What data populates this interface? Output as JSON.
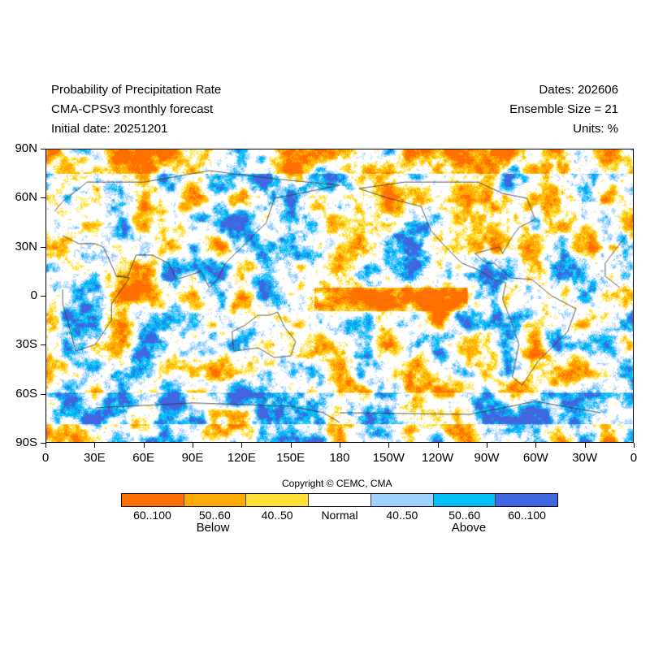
{
  "header": {
    "title": "Probability of Precipitation Rate",
    "model": "CMA-CPSv3 monthly forecast",
    "initial_date": "Initial date: 20251201",
    "dates": "Dates: 202606",
    "ensemble": "Ensemble Size = 21",
    "units": "Units: %"
  },
  "axes": {
    "y_labels": [
      "90N",
      "60N",
      "30N",
      "0",
      "30S",
      "60S",
      "90S"
    ],
    "x_labels": [
      "0",
      "30E",
      "60E",
      "90E",
      "120E",
      "150E",
      "180",
      "150W",
      "120W",
      "90W",
      "60W",
      "30W",
      "0"
    ]
  },
  "copyright": "Copyright © CEMC, CMA",
  "legend": {
    "bins": [
      {
        "label": "60..100",
        "color": "#FF7000"
      },
      {
        "label": "50..60",
        "color": "#FFAA00"
      },
      {
        "label": "40..50",
        "color": "#FFE033"
      },
      {
        "label": "Normal",
        "color": "#FFFFFF"
      },
      {
        "label": "40..50",
        "color": "#A0D2FF"
      },
      {
        "label": "50..60",
        "color": "#00BEF7"
      },
      {
        "label": "60..100",
        "color": "#4167E0"
      }
    ],
    "below_label": "Below",
    "above_label": "Above"
  }
}
